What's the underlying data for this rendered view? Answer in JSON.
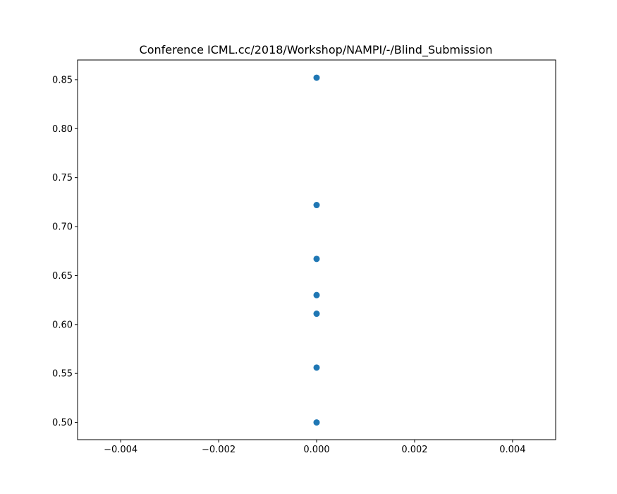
{
  "chart_data": {
    "type": "scatter",
    "title": "Conference ICML.cc/2018/Workshop/NAMPI/-/Blind_Submission",
    "xlabel": "",
    "ylabel": "",
    "xlim": [
      -0.00488,
      0.00488
    ],
    "ylim": [
      0.4824,
      0.8701
    ],
    "x_ticks": [
      "−0.004",
      "−0.002",
      "0.000",
      "0.002",
      "0.004"
    ],
    "x_tick_values": [
      -0.004,
      -0.002,
      0.0,
      0.002,
      0.004
    ],
    "y_ticks": [
      "0.50",
      "0.55",
      "0.60",
      "0.65",
      "0.70",
      "0.75",
      "0.80",
      "0.85"
    ],
    "y_tick_values": [
      0.5,
      0.55,
      0.6,
      0.65,
      0.7,
      0.75,
      0.8,
      0.85
    ],
    "grid": false,
    "points": [
      {
        "x": 0.0,
        "y": 0.852
      },
      {
        "x": 0.0,
        "y": 0.722
      },
      {
        "x": 0.0,
        "y": 0.667
      },
      {
        "x": 0.0,
        "y": 0.63
      },
      {
        "x": 0.0,
        "y": 0.611
      },
      {
        "x": 0.0,
        "y": 0.556
      },
      {
        "x": 0.0,
        "y": 0.5
      }
    ],
    "marker_color": "#1f77b4"
  }
}
